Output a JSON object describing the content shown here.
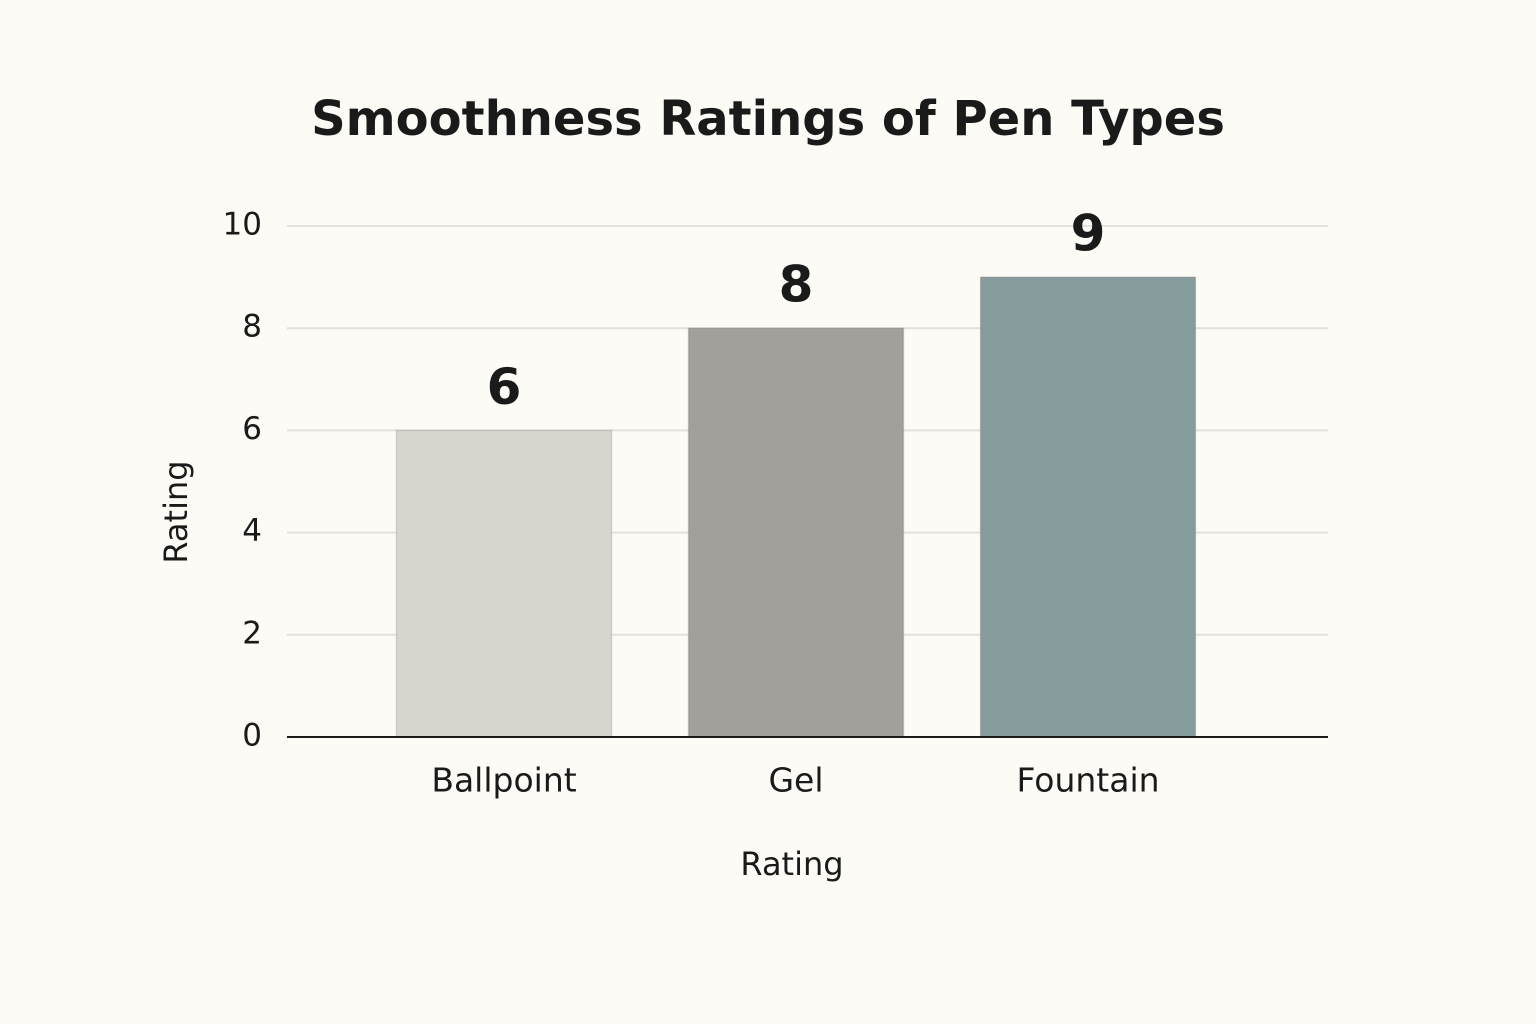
{
  "chart_data": {
    "type": "bar",
    "title": "Smoothness Ratings of Pen Types",
    "categories": [
      "Ballpoint",
      "Gel",
      "Fountain"
    ],
    "values": [
      6,
      8,
      9
    ],
    "colors": [
      "#d9d6d0",
      "#a39f9a",
      "#879c9c"
    ],
    "x_label": "Rating",
    "y_label": "Rating",
    "ylim": [
      0,
      10
    ],
    "yticks": [
      0,
      2,
      4,
      6,
      8,
      10
    ],
    "grid": true
  }
}
